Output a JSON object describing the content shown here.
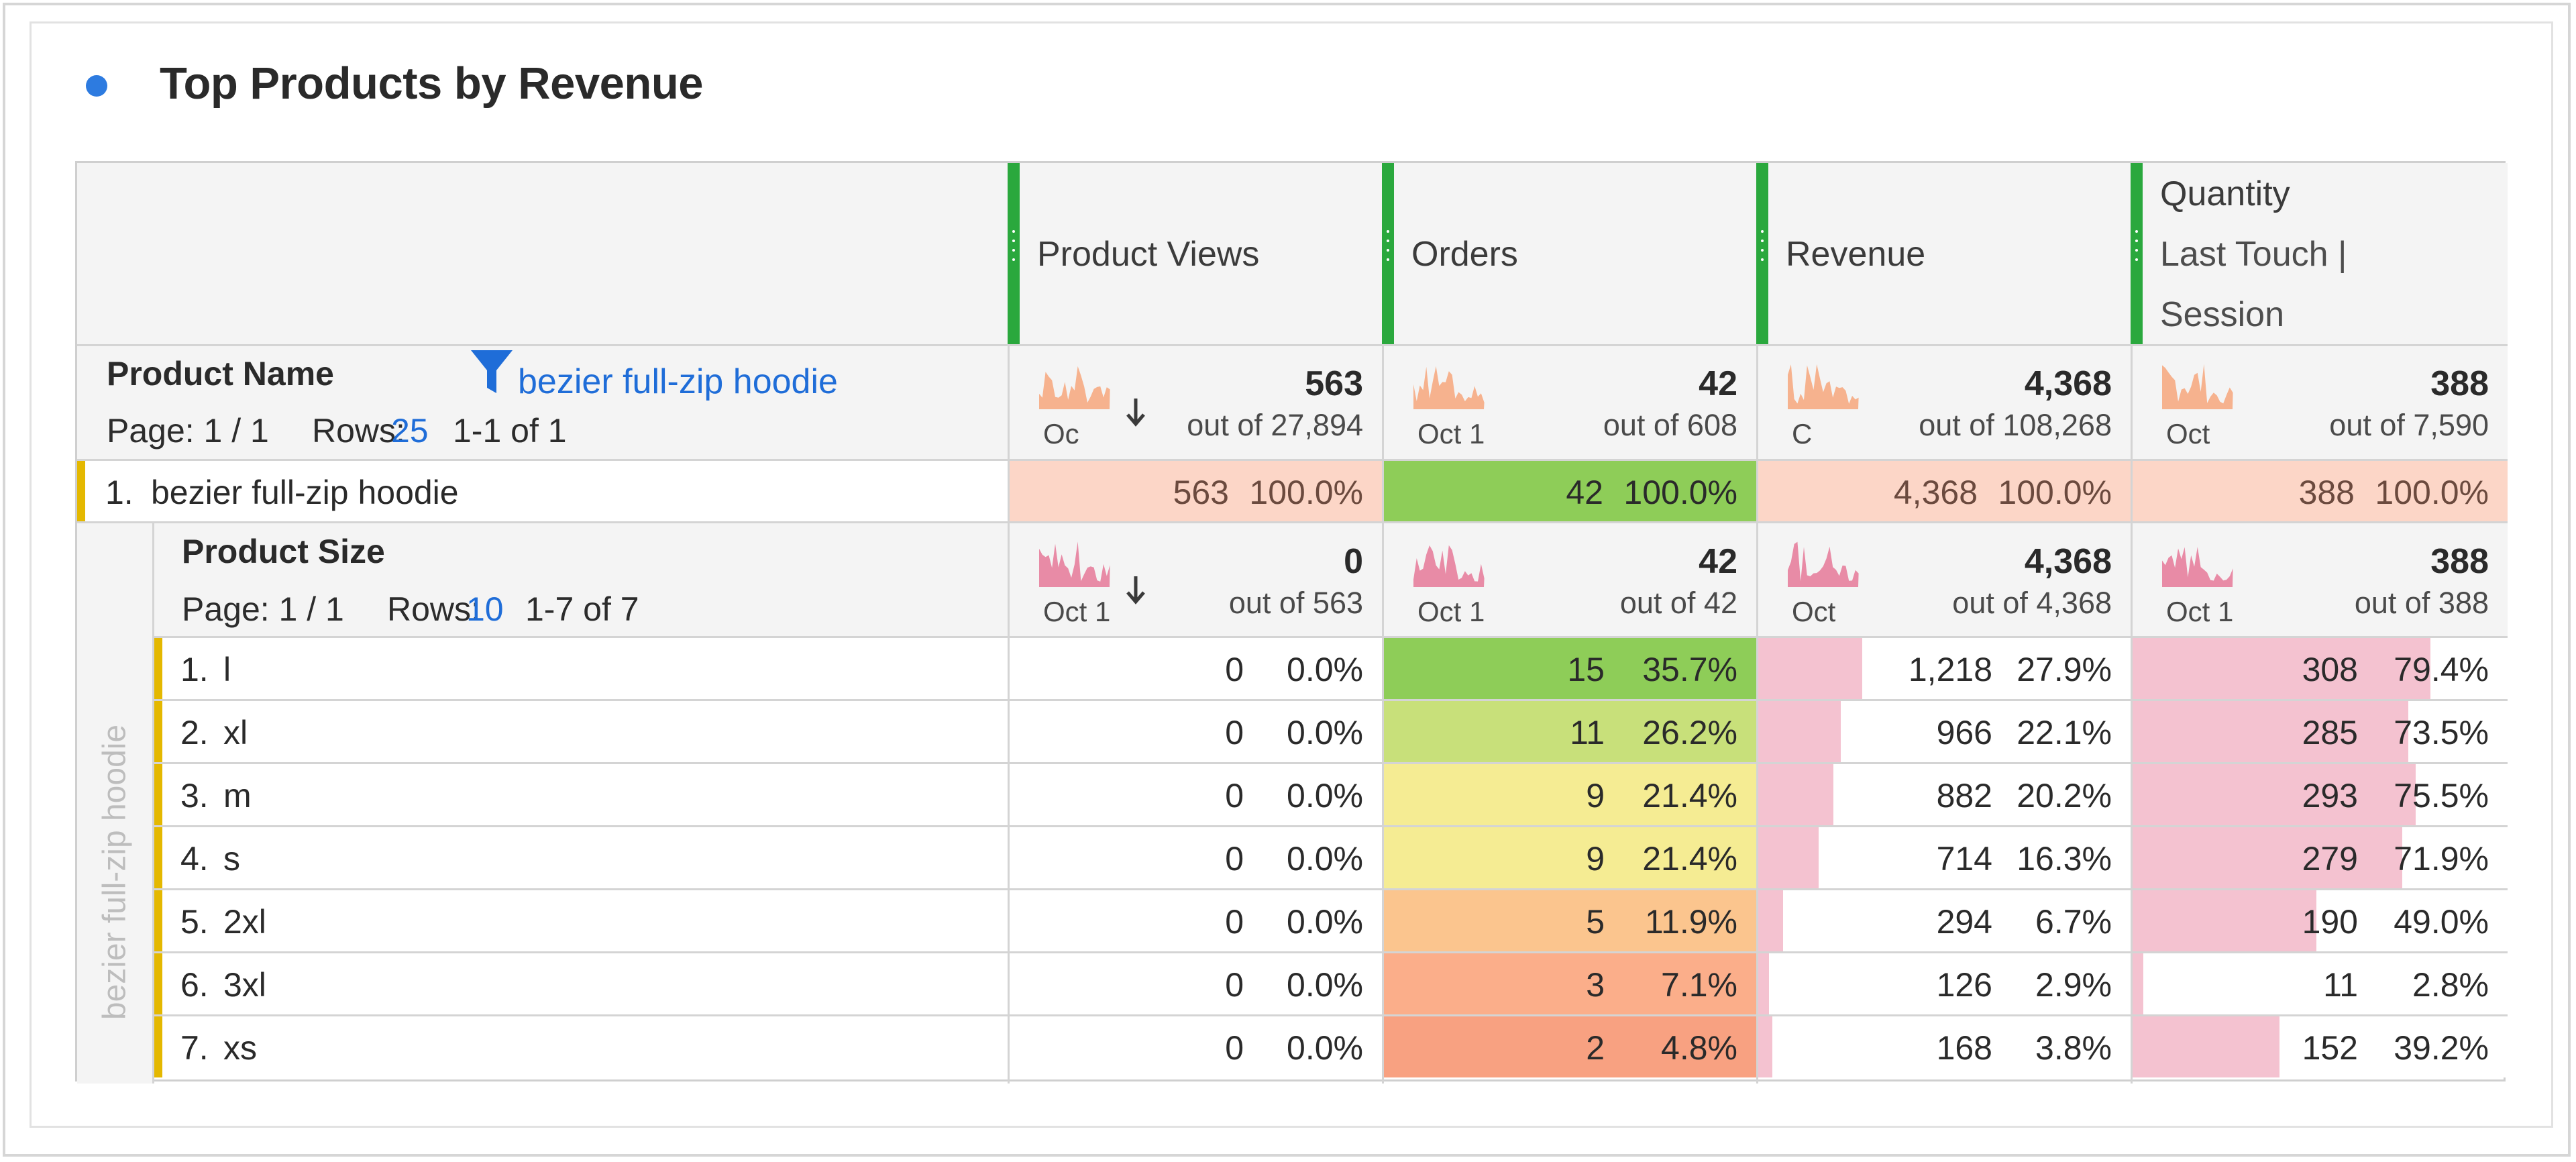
{
  "panel": {
    "title": "Top Products by Revenue"
  },
  "colors": {
    "title_dot": "#2d7be0",
    "column_marker": "#2aa83d",
    "row_marker": "#e4b800",
    "link": "#1f6dd8",
    "spark_top": "#f6b28e",
    "spark_sub": "#e88ba6",
    "top_row_fill": "#fcd6c7",
    "orders_top_fill": "#8ecd58",
    "bar_pink": "#f4c2d0"
  },
  "columns": [
    {
      "label": "Product Views"
    },
    {
      "label": "Orders"
    },
    {
      "label": "Revenue"
    },
    {
      "label": "Quantity",
      "sub1": "Last Touch |",
      "sub2": "Session"
    }
  ],
  "dimension_header": {
    "title": "Product Name",
    "filter_icon": "filter-icon",
    "filter_text": "bezier full-zip hoodie",
    "page_label": "Page: 1 / 1",
    "rows_label": "Rows:",
    "rows_value": "25",
    "range": "1-1 of 1"
  },
  "top_totals": [
    {
      "total": "563",
      "outof": "out of 27,894",
      "spark_label": "Oc",
      "sort_icon": "sort-down-arrow-icon"
    },
    {
      "total": "42",
      "outof": "out of 608",
      "spark_label": "Oct 1"
    },
    {
      "total": "4,368",
      "outof": "out of 108,268",
      "spark_label": "C"
    },
    {
      "total": "388",
      "outof": "out of 7,590",
      "spark_label": "Oct"
    }
  ],
  "top_row": {
    "index": "1.",
    "label": "bezier full-zip hoodie",
    "cells": [
      {
        "value": "563",
        "pct": "100.0%"
      },
      {
        "value": "42",
        "pct": "100.0%"
      },
      {
        "value": "4,368",
        "pct": "100.0%"
      },
      {
        "value": "388",
        "pct": "100.0%"
      }
    ]
  },
  "breakdown": {
    "vertical_label": "bezier full-zip hoodie",
    "header": {
      "title": "Product Size",
      "page_label": "Page: 1 / 1",
      "rows_label": "Rows:",
      "rows_value": "10",
      "range": "1-7 of 7"
    },
    "totals": [
      {
        "total": "0",
        "outof": "out of 563",
        "spark_label": "Oct 1",
        "sort_icon": "sort-down-arrow-icon"
      },
      {
        "total": "42",
        "outof": "out of 42",
        "spark_label": "Oct 1"
      },
      {
        "total": "4,368",
        "outof": "out of 4,368",
        "spark_label": "Oct"
      },
      {
        "total": "388",
        "outof": "out of 388",
        "spark_label": "Oct 1"
      }
    ],
    "rows": [
      {
        "index": "1.",
        "label": "l",
        "views": "0",
        "views_pct": "0.0%",
        "orders": "15",
        "orders_pct": "35.7%",
        "orders_color": "#8ecd58",
        "revenue": "1,218",
        "revenue_pct": "27.9%",
        "revenue_frac": 0.279,
        "qty": "308",
        "qty_pct": "79.4%",
        "qty_frac": 0.794
      },
      {
        "index": "2.",
        "label": "xl",
        "views": "0",
        "views_pct": "0.0%",
        "orders": "11",
        "orders_pct": "26.2%",
        "orders_color": "#c8e07a",
        "revenue": "966",
        "revenue_pct": "22.1%",
        "revenue_frac": 0.221,
        "qty": "285",
        "qty_pct": "73.5%",
        "qty_frac": 0.735
      },
      {
        "index": "3.",
        "label": "m",
        "views": "0",
        "views_pct": "0.0%",
        "orders": "9",
        "orders_pct": "21.4%",
        "orders_color": "#f5ec93",
        "revenue": "882",
        "revenue_pct": "20.2%",
        "revenue_frac": 0.202,
        "qty": "293",
        "qty_pct": "75.5%",
        "qty_frac": 0.755
      },
      {
        "index": "4.",
        "label": "s",
        "views": "0",
        "views_pct": "0.0%",
        "orders": "9",
        "orders_pct": "21.4%",
        "orders_color": "#f5ec93",
        "revenue": "714",
        "revenue_pct": "16.3%",
        "revenue_frac": 0.163,
        "qty": "279",
        "qty_pct": "71.9%",
        "qty_frac": 0.719
      },
      {
        "index": "5.",
        "label": "2xl",
        "views": "0",
        "views_pct": "0.0%",
        "orders": "5",
        "orders_pct": "11.9%",
        "orders_color": "#fbc58e",
        "revenue": "294",
        "revenue_pct": "6.7%",
        "revenue_frac": 0.067,
        "qty": "190",
        "qty_pct": "49.0%",
        "qty_frac": 0.49
      },
      {
        "index": "6.",
        "label": "3xl",
        "views": "0",
        "views_pct": "0.0%",
        "orders": "3",
        "orders_pct": "7.1%",
        "orders_color": "#fbae8a",
        "revenue": "126",
        "revenue_pct": "2.9%",
        "revenue_frac": 0.029,
        "qty": "11",
        "qty_pct": "2.8%",
        "qty_frac": 0.028
      },
      {
        "index": "7.",
        "label": "xs",
        "views": "0",
        "views_pct": "0.0%",
        "orders": "2",
        "orders_pct": "4.8%",
        "orders_color": "#f8a181",
        "revenue": "168",
        "revenue_pct": "3.8%",
        "revenue_frac": 0.038,
        "qty": "152",
        "qty_pct": "39.2%",
        "qty_frac": 0.392
      }
    ]
  }
}
